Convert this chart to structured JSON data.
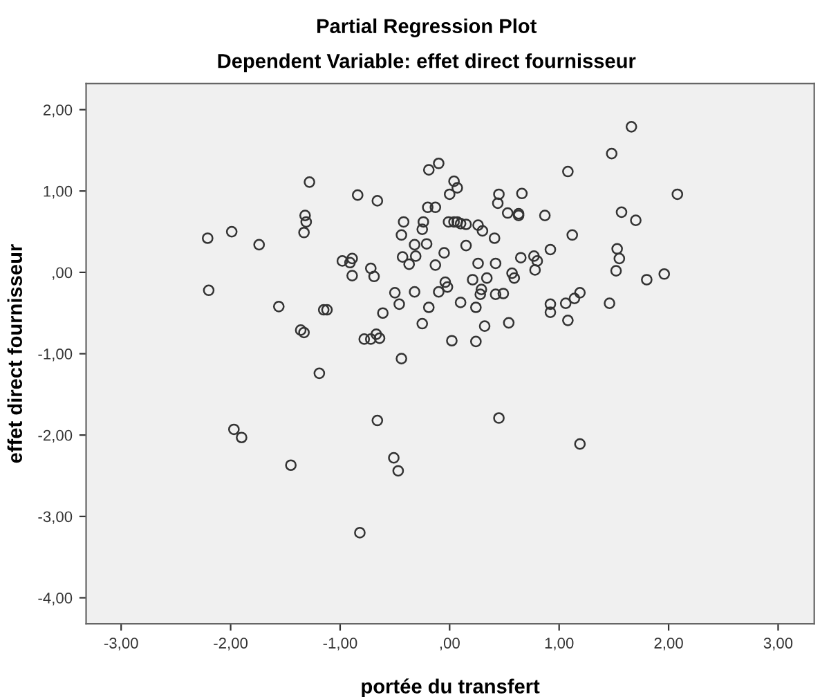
{
  "chart_data": {
    "type": "scatter",
    "title": "Partial Regression Plot",
    "subtitle": "Dependent Variable: effet direct fournisseur",
    "xlabel": "portée du transfert",
    "ylabel": "effet direct fournisseur",
    "xlim": [
      -3.32,
      3.33
    ],
    "ylim": [
      -4.32,
      2.32
    ],
    "xticks": [
      {
        "value": -3,
        "label": "-3,00"
      },
      {
        "value": -2,
        "label": "-2,00"
      },
      {
        "value": -1,
        "label": "-1,00"
      },
      {
        "value": 0,
        "label": ",00"
      },
      {
        "value": 1,
        "label": "1,00"
      },
      {
        "value": 2,
        "label": "2,00"
      },
      {
        "value": 3,
        "label": "3,00"
      }
    ],
    "yticks": [
      {
        "value": -4,
        "label": "-4,00"
      },
      {
        "value": -3,
        "label": "-3,00"
      },
      {
        "value": -2,
        "label": "-2,00"
      },
      {
        "value": -1,
        "label": "-1,00"
      },
      {
        "value": 0,
        "label": ",00"
      },
      {
        "value": 1,
        "label": "1,00"
      },
      {
        "value": 2,
        "label": "2,00"
      }
    ],
    "grid": false,
    "marker": "circle",
    "series": [
      {
        "color": "#333333",
        "x": [
          -1.28,
          -0.84,
          -0.66,
          -1.32,
          -1.31,
          -1.33,
          -2.21,
          -1.99,
          -1.74,
          -0.98,
          -0.91,
          -0.89,
          -0.89,
          -0.72,
          -0.69,
          -2.2,
          -1.56,
          -1.15,
          -1.12,
          -1.36,
          -1.33,
          -0.61,
          -0.78,
          -0.72,
          -0.67,
          -0.64,
          -1.19,
          -1.97,
          -1.9,
          -1.45,
          -0.66,
          -0.82,
          1.66,
          1.48,
          1.08,
          2.08,
          -0.19,
          -0.1,
          0.04,
          0.07,
          0.0,
          0.45,
          0.44,
          0.66,
          -0.2,
          -0.13,
          0.53,
          0.63,
          0.63,
          0.87,
          1.57,
          1.7,
          -0.42,
          -0.44,
          -0.24,
          -0.25,
          -0.01,
          0.04,
          0.07,
          0.1,
          0.15,
          0.26,
          0.3,
          0.41,
          1.12,
          -0.32,
          -0.21,
          0.15,
          -0.43,
          -0.37,
          -0.31,
          -0.13,
          -0.05,
          0.26,
          0.42,
          0.65,
          0.77,
          0.8,
          0.78,
          0.92,
          1.53,
          1.55,
          1.52,
          1.8,
          1.96,
          0.57,
          0.59,
          0.21,
          0.34,
          -0.04,
          -0.02,
          -0.5,
          -0.32,
          -0.1,
          0.29,
          0.28,
          0.42,
          0.49,
          -0.46,
          -0.19,
          0.1,
          0.24,
          0.92,
          0.92,
          1.06,
          1.14,
          1.19,
          1.08,
          1.46,
          -0.25,
          0.32,
          0.54,
          0.02,
          0.24,
          -0.44,
          0.45,
          1.19,
          -0.51,
          -0.47
        ],
        "values": [
          1.11,
          0.95,
          0.88,
          0.7,
          0.62,
          0.49,
          0.42,
          0.5,
          0.34,
          0.14,
          0.12,
          0.17,
          -0.04,
          0.05,
          -0.05,
          -0.22,
          -0.42,
          -0.46,
          -0.46,
          -0.71,
          -0.74,
          -0.5,
          -0.82,
          -0.82,
          -0.76,
          -0.81,
          -1.24,
          -1.93,
          -2.03,
          -2.37,
          -1.82,
          -3.2,
          1.79,
          1.46,
          1.24,
          0.96,
          1.26,
          1.34,
          1.12,
          1.04,
          0.96,
          0.96,
          0.85,
          0.97,
          0.8,
          0.8,
          0.73,
          0.72,
          0.7,
          0.7,
          0.74,
          0.64,
          0.62,
          0.46,
          0.62,
          0.53,
          0.62,
          0.62,
          0.62,
          0.6,
          0.59,
          0.58,
          0.51,
          0.42,
          0.46,
          0.34,
          0.35,
          0.33,
          0.19,
          0.1,
          0.2,
          0.09,
          0.24,
          0.11,
          0.11,
          0.18,
          0.2,
          0.14,
          0.03,
          0.28,
          0.29,
          0.17,
          0.02,
          -0.09,
          -0.02,
          -0.01,
          -0.07,
          -0.09,
          -0.07,
          -0.12,
          -0.18,
          -0.25,
          -0.24,
          -0.24,
          -0.21,
          -0.27,
          -0.27,
          -0.26,
          -0.39,
          -0.43,
          -0.37,
          -0.43,
          -0.39,
          -0.49,
          -0.38,
          -0.32,
          -0.25,
          -0.59,
          -0.38,
          -0.63,
          -0.66,
          -0.62,
          -0.84,
          -0.85,
          -1.06,
          -1.79,
          -2.11,
          -2.28,
          -2.44
        ]
      }
    ]
  }
}
